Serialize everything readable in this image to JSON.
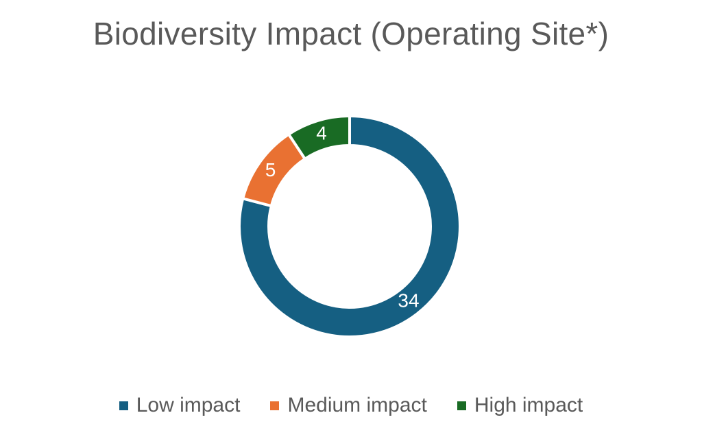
{
  "chart_data": {
    "type": "pie",
    "subtype": "donut",
    "title": "Biodiversity Impact (Operating Site*)",
    "categories": [
      "Low impact",
      "Medium impact",
      "High impact"
    ],
    "values": [
      34,
      5,
      4
    ],
    "data_labels": [
      "34",
      "5",
      "4"
    ],
    "colors": [
      "#155F82",
      "#E97132",
      "#196B24"
    ],
    "legend_position": "bottom"
  }
}
